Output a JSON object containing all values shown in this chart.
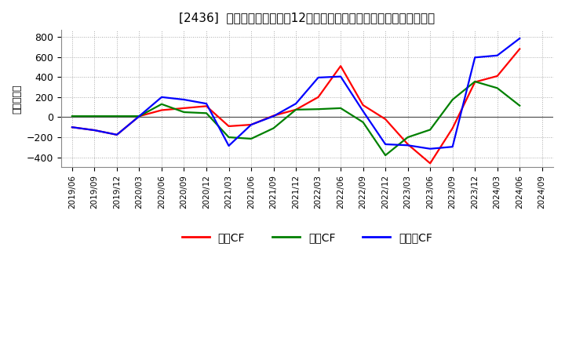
{
  "title": "[2436]  キャッシュフローの12か月移動合計の対前年同期増減額の推移",
  "ylabel": "（百万円）",
  "background_color": "#ffffff",
  "plot_background": "#ffffff",
  "grid_color": "#aaaaaa",
  "ylim": [
    -500,
    870
  ],
  "yticks": [
    -400,
    -200,
    0,
    200,
    400,
    600,
    800
  ],
  "x_labels": [
    "2019/06",
    "2019/09",
    "2019/12",
    "2020/03",
    "2020/06",
    "2020/09",
    "2020/12",
    "2021/03",
    "2021/06",
    "2021/09",
    "2021/12",
    "2022/03",
    "2022/06",
    "2022/09",
    "2022/12",
    "2023/03",
    "2023/06",
    "2023/09",
    "2023/12",
    "2024/03",
    "2024/06",
    "2024/09"
  ],
  "series_order": [
    "営業CF",
    "投資CF",
    "フリーCF"
  ],
  "series": {
    "営業CF": {
      "color": "#ff0000",
      "values": [
        -100,
        -130,
        -175,
        10,
        70,
        90,
        110,
        -90,
        -75,
        15,
        75,
        200,
        510,
        120,
        -20,
        -270,
        -460,
        -110,
        350,
        410,
        680,
        null
      ]
    },
    "投資CF": {
      "color": "#008000",
      "values": [
        10,
        10,
        10,
        10,
        130,
        50,
        40,
        -200,
        -215,
        -110,
        75,
        80,
        90,
        -50,
        -380,
        -200,
        -125,
        175,
        355,
        290,
        115,
        null
      ]
    },
    "フリーCF": {
      "color": "#0000ff",
      "values": [
        -100,
        -130,
        -175,
        10,
        200,
        175,
        135,
        -285,
        -75,
        10,
        135,
        395,
        405,
        60,
        -270,
        -280,
        -315,
        -295,
        595,
        615,
        785,
        null
      ]
    }
  },
  "legend_labels": [
    "営業CF",
    "投資CF",
    "フリーCF"
  ],
  "legend_colors": [
    "#ff0000",
    "#008000",
    "#0000ff"
  ]
}
